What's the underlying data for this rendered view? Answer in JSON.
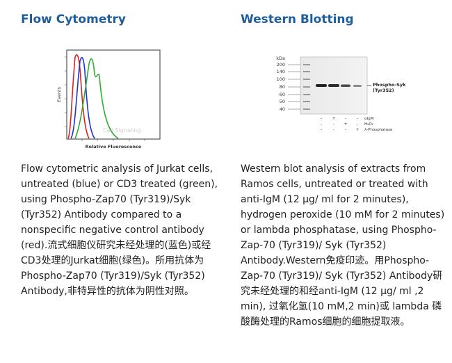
{
  "flow_cytometry": {
    "title": "Flow Cytometry",
    "figure": {
      "y_axis_label": "Events",
      "x_axis_label": "Relative Fluorescence",
      "watermark": "Cell Signaling",
      "series_colors": {
        "untreated": "#2233cc",
        "cd3_treated": "#33aa33",
        "control": "#dd2222"
      }
    },
    "caption": "Flow cytometric analysis of Jurkat cells, untreated (blue) or CD3 treated (green), using Phospho-Zap70 (Tyr319)/Syk (Tyr352) Antibody compared to a nonspecific negative control antibody (red).流式细胞仪研究未经处理的(蓝色)或经CD3处理的Jurkat细胞(绿色)。所用抗体为Phospho-Zap70 (Tyr319)/Syk (Tyr352) Antibody,非特异性的抗体为阴性对照。"
  },
  "western_blotting": {
    "title": "Western Blotting",
    "figure": {
      "markers": [
        "kDa",
        "200",
        "140",
        "100",
        "80",
        "60",
        "50",
        "40"
      ],
      "band_label_line1": "Phospho-Syk",
      "band_label_line2": "(Tyr352)",
      "conditions": [
        {
          "label": "αIgM",
          "signs": [
            "-",
            "+",
            "-",
            "-"
          ]
        },
        {
          "label": "H₂O₂",
          "signs": [
            "-",
            "-",
            "+",
            "-"
          ]
        },
        {
          "label": "λ-Phosphatase",
          "signs": [
            "-",
            "-",
            "-",
            "+"
          ]
        }
      ]
    },
    "caption": "Western blot analysis of extracts from Ramos cells, untreated or treated with anti-IgM (12 μg/ ml for 2 minutes), hydrogen peroxide (10 mM for 2 minutes) or lambda phosphatase, using Phospho-Zap-70 (Tyr319)/ Syk (Tyr352) Antibody.Western免疫印迹。用Phospho-Zap-70 (Tyr319)/ Syk (Tyr352) Antibody研究未经处理的和经anti-IgM (12 μg/ ml ,2 min), 过氧化氢(10 mM,2 min)或 lambda 磷酸酶处理的Ramos细胞的细胞提取液。"
  }
}
